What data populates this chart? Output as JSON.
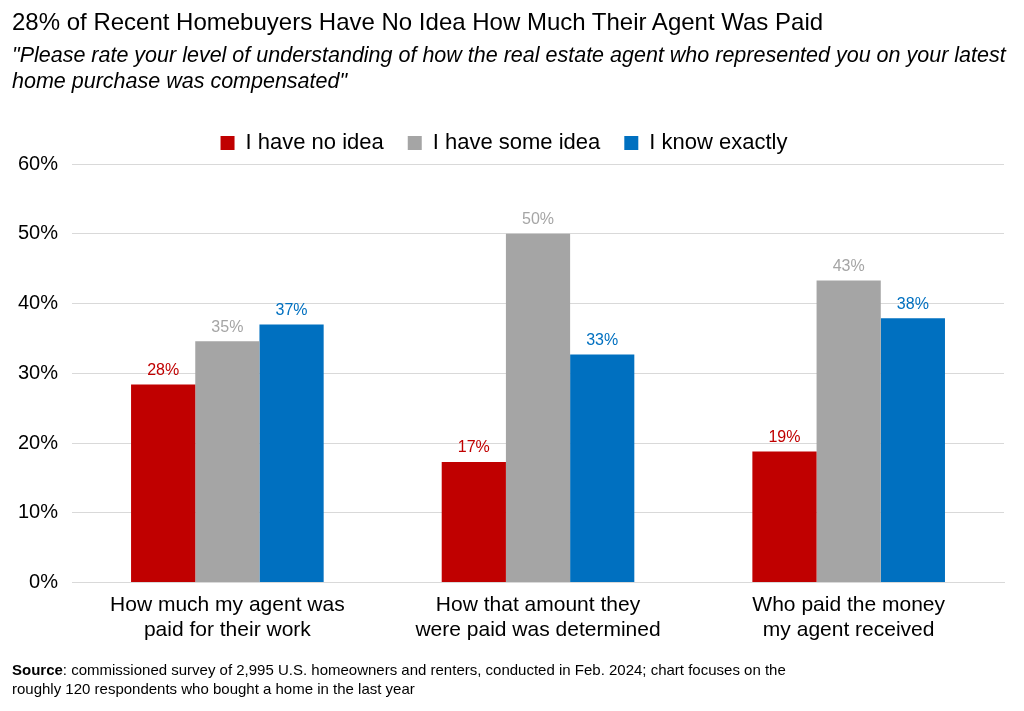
{
  "chart_data": {
    "type": "bar",
    "title": "28% of Recent Homebuyers Have No Idea How Much Their Agent Was Paid",
    "subtitle": "\"Please rate your level of understanding of how the real estate agent who represented you on your latest home purchase was compensated\"",
    "categories": [
      "How much my agent was paid for their work",
      "How that amount they were paid was determined",
      "Who paid the money my agent received"
    ],
    "series": [
      {
        "name": "I have no idea",
        "color": "#c00000",
        "values": [
          28.4,
          17.3,
          18.8
        ],
        "value_labels": [
          "28%",
          "17%",
          "19%"
        ]
      },
      {
        "name": "I have some idea",
        "color": "#a5a5a5",
        "values": [
          34.6,
          50,
          43.3
        ],
        "value_labels": [
          "35%",
          "50%",
          "43%"
        ]
      },
      {
        "name": "I know exactly",
        "color": "#0070c0",
        "values": [
          37,
          32.7,
          37.9
        ],
        "value_labels": [
          "37%",
          "33%",
          "38%"
        ]
      }
    ],
    "ylim": [
      0,
      60
    ],
    "yticks": [
      {
        "value": 0,
        "label": "0%"
      },
      {
        "value": 10,
        "label": "10%"
      },
      {
        "value": 20,
        "label": "20%"
      },
      {
        "value": 30,
        "label": "30%"
      },
      {
        "value": 40,
        "label": "40%"
      },
      {
        "value": 50,
        "label": "50%"
      },
      {
        "value": 60,
        "label": "60%"
      }
    ],
    "grid": "y",
    "legend": "top",
    "annotations": [
      "Source: commissioned survey of 2,995 U.S. homeowners and renters, conducted in Feb. 2024; chart focuses on the roughly 120 respondents who bought a home in the last year"
    ]
  }
}
